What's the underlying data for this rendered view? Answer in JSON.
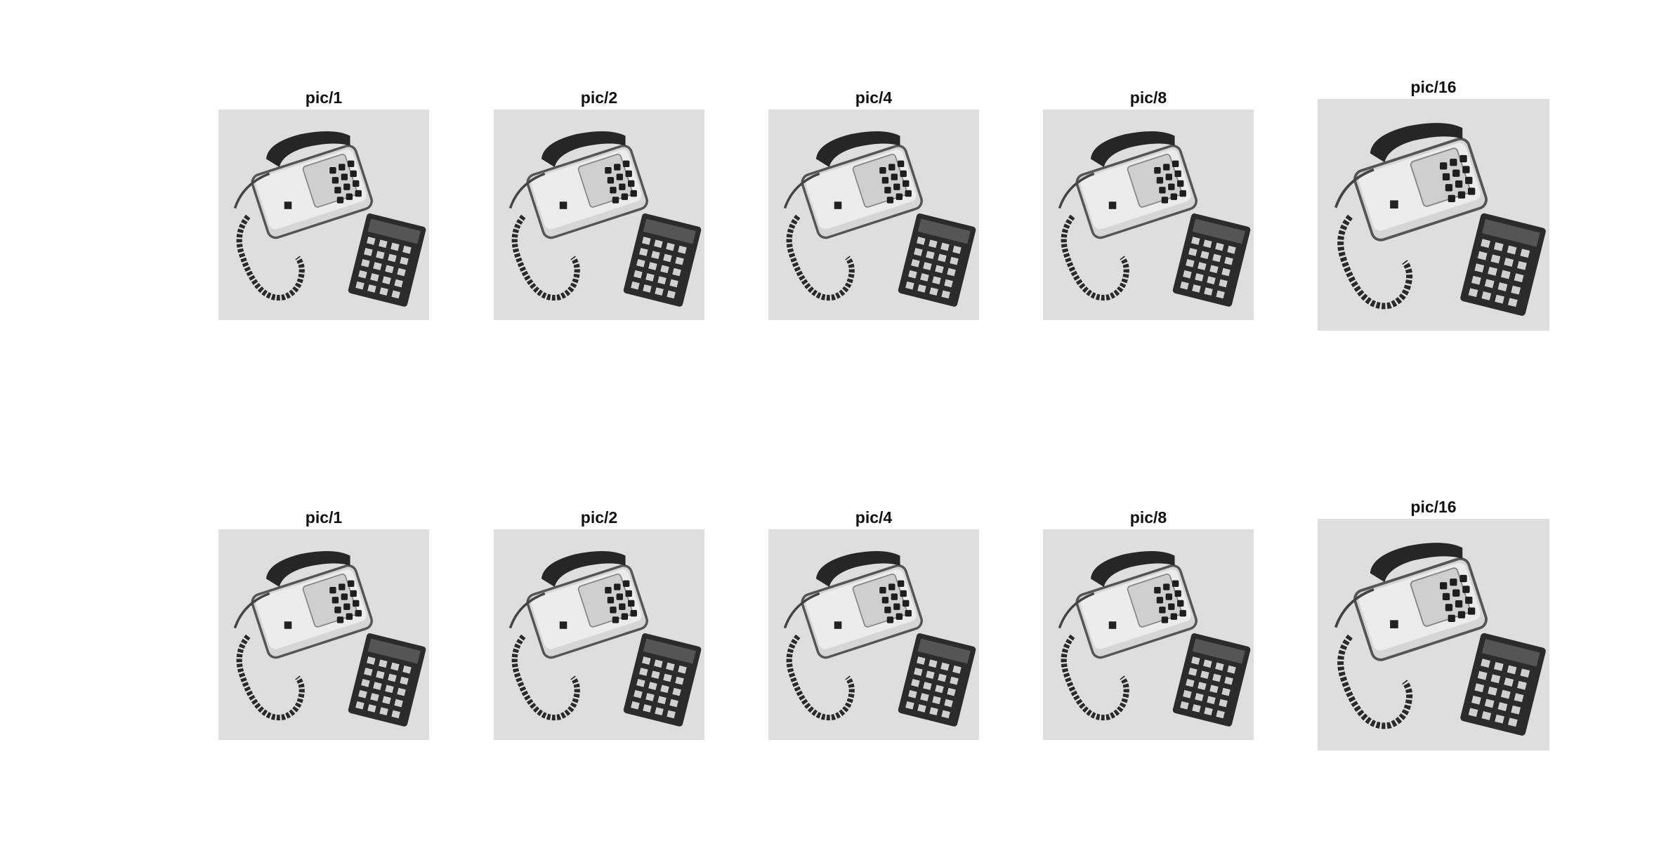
{
  "figure": {
    "rows": [
      {
        "panels": [
          {
            "title": "pic/1",
            "downsample": 1
          },
          {
            "title": "pic/2",
            "downsample": 2
          },
          {
            "title": "pic/4",
            "downsample": 4
          },
          {
            "title": "pic/8",
            "downsample": 8
          },
          {
            "title": "pic/16",
            "downsample": 16
          }
        ]
      },
      {
        "panels": [
          {
            "title": "pic/1",
            "downsample": 1
          },
          {
            "title": "pic/2",
            "downsample": 2
          },
          {
            "title": "pic/4",
            "downsample": 4
          },
          {
            "title": "pic/8",
            "downsample": 8
          },
          {
            "title": "pic/16",
            "downsample": 16
          }
        ]
      }
    ],
    "colormap": "gray"
  }
}
